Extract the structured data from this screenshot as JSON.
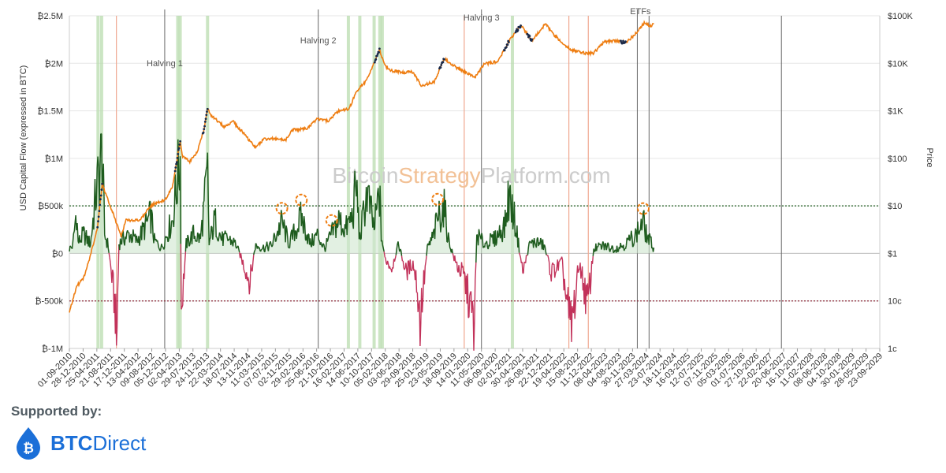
{
  "chart_data": {
    "type": "line",
    "watermark": {
      "part1": "Bitcoin",
      "part2": "Strategy",
      "part3": "Platform.com"
    },
    "ylabel_left": "USD Capital Flow (expressed in BTC)",
    "ylabel_right": "Price",
    "y_left_ticks": [
      "₿2.5M",
      "₿2M",
      "₿1.5M",
      "₿1M",
      "₿500k",
      "₿0",
      "₿-500k",
      "₿-1M"
    ],
    "y_left_values": [
      2500000,
      2000000,
      1500000,
      1000000,
      500000,
      0,
      -500000,
      -1000000
    ],
    "y_right_ticks": [
      "$100K",
      "$10K",
      "$1K",
      "$100",
      "$10",
      "$1",
      "10c",
      "1c"
    ],
    "y_right_values": [
      100000,
      10000,
      1000,
      100,
      10,
      1,
      0.1,
      0.01
    ],
    "ylim_left": [
      -1000000,
      2500000
    ],
    "ylim_right": [
      0.01,
      100000
    ],
    "x_ticks": [
      "01-09-2010",
      "28-12-2010",
      "25-04-2011",
      "21-08-2011",
      "17-12-2011",
      "13-04-2012",
      "09-08-2012",
      "05-12-2012",
      "02-04-2013",
      "29-07-2013",
      "24-11-2013",
      "22-03-2014",
      "18-07-2014",
      "13-11-2014",
      "11-03-2015",
      "07-07-2015",
      "02-11-2015",
      "29-02-2016",
      "25-06-2016",
      "21-10-2016",
      "16-02-2017",
      "14-06-2017",
      "10-10-2017",
      "05-02-2018",
      "03-06-2018",
      "29-09-2018",
      "25-01-2019",
      "23-05-2019",
      "18-09-2019",
      "14-01-2020",
      "11-05-2020",
      "06-09-2020",
      "02-01-2021",
      "30-04-2021",
      "26-08-2021",
      "22-12-2021",
      "19-04-2022",
      "15-08-2022",
      "11-12-2022",
      "08-04-2023",
      "04-08-2023",
      "30-11-2023",
      "27-03-2024",
      "23-07-2024",
      "18-11-2024",
      "16-03-2025",
      "12-07-2025",
      "07-11-2025",
      "05-03-2026",
      "01-07-2026",
      "27-10-2026",
      "22-02-2027",
      "20-06-2027",
      "16-10-2027",
      "11-02-2028",
      "08-06-2028",
      "04-10-2028",
      "30-01-2029",
      "28-05-2029",
      "23-09-2029"
    ],
    "reference_lines": [
      500000,
      -500000
    ],
    "event_lines": [
      {
        "label": "Halving 1",
        "date": "28-11-2012"
      },
      {
        "label": "Halving 2",
        "date": "09-07-2016"
      },
      {
        "label": "Halving 3",
        "date": "11-05-2020"
      },
      {
        "label": "ETFs",
        "date": "10-01-2024"
      }
    ],
    "extra_vertical_dates": [
      "20-04-2024",
      "01-06-2027"
    ],
    "green_bands": [
      "05-05-2011",
      "05-06-2011",
      "20-03-2013",
      "10-04-2013",
      "01-12-2013",
      "25-03-2017",
      "01-07-2017",
      "01-11-2017",
      "20-12-2017",
      "10-01-2018",
      "01-02-2021"
    ],
    "red_lines": [
      "10-10-2011",
      "15-12-2019",
      "01-06-2022",
      "15-11-2022"
    ],
    "highlight_circles_dates": [
      "01-09-2015",
      "15-02-2016",
      "01-11-2016",
      "01-05-2019",
      "01-03-2024"
    ],
    "price_series": {
      "name": "Price",
      "points": [
        [
          "01-09-2010",
          0.06
        ],
        [
          "01-11-2010",
          0.2
        ],
        [
          "01-01-2011",
          0.3
        ],
        [
          "01-03-2011",
          0.9
        ],
        [
          "01-05-2011",
          3.5
        ],
        [
          "10-06-2011",
          29
        ],
        [
          "01-08-2011",
          13
        ],
        [
          "01-10-2011",
          5
        ],
        [
          "20-11-2011",
          2.3
        ],
        [
          "01-01-2012",
          5
        ],
        [
          "01-03-2012",
          5
        ],
        [
          "01-05-2012",
          5
        ],
        [
          "01-08-2012",
          10
        ],
        [
          "01-10-2012",
          12
        ],
        [
          "01-12-2012",
          13
        ],
        [
          "01-02-2013",
          25
        ],
        [
          "10-04-2013",
          230
        ],
        [
          "01-05-2013",
          110
        ],
        [
          "01-07-2013",
          85
        ],
        [
          "01-09-2013",
          130
        ],
        [
          "01-11-2013",
          400
        ],
        [
          "01-12-2013",
          1150
        ],
        [
          "01-01-2014",
          800
        ],
        [
          "01-03-2014",
          600
        ],
        [
          "01-05-2014",
          450
        ],
        [
          "01-07-2014",
          620
        ],
        [
          "01-10-2014",
          350
        ],
        [
          "14-01-2015",
          170
        ],
        [
          "01-04-2015",
          250
        ],
        [
          "01-07-2015",
          260
        ],
        [
          "01-10-2015",
          240
        ],
        [
          "01-12-2015",
          400
        ],
        [
          "01-04-2016",
          420
        ],
        [
          "01-07-2016",
          670
        ],
        [
          "01-10-2016",
          610
        ],
        [
          "01-01-2017",
          1000
        ],
        [
          "01-04-2017",
          1100
        ],
        [
          "01-06-2017",
          2500
        ],
        [
          "01-09-2017",
          4500
        ],
        [
          "17-12-2017",
          19500
        ],
        [
          "01-02-2018",
          9000
        ],
        [
          "01-04-2018",
          7000
        ],
        [
          "01-07-2018",
          6400
        ],
        [
          "01-10-2018",
          6500
        ],
        [
          "15-12-2018",
          3300
        ],
        [
          "01-04-2019",
          4100
        ],
        [
          "26-06-2019",
          12500
        ],
        [
          "01-10-2019",
          8300
        ],
        [
          "15-03-2020",
          5000
        ],
        [
          "01-06-2020",
          9500
        ],
        [
          "01-10-2020",
          11000
        ],
        [
          "01-01-2021",
          29000
        ],
        [
          "14-04-2021",
          63000
        ],
        [
          "20-07-2021",
          30000
        ],
        [
          "10-11-2021",
          67000
        ],
        [
          "01-02-2022",
          38000
        ],
        [
          "18-06-2022",
          19000
        ],
        [
          "09-11-2022",
          16000
        ],
        [
          "01-01-2023",
          16500
        ],
        [
          "01-04-2023",
          28000
        ],
        [
          "01-07-2023",
          30000
        ],
        [
          "01-10-2023",
          27000
        ],
        [
          "01-01-2024",
          43000
        ],
        [
          "14-03-2024",
          72000
        ],
        [
          "01-05-2024",
          60000
        ],
        [
          "01-06-2024",
          68000
        ]
      ]
    },
    "flow_series": {
      "name": "USD Capital Flow (expressed in BTC)",
      "positive_color": "#1e5c1e",
      "negative_color": "#c2325a",
      "points": [
        [
          "01-09-2010",
          50000
        ],
        [
          "01-10-2010",
          80000
        ],
        [
          "01-11-2010",
          470000
        ],
        [
          "15-11-2010",
          110000
        ],
        [
          "01-01-2011",
          200000
        ],
        [
          "01-03-2011",
          100000
        ],
        [
          "15-04-2011",
          600000
        ],
        [
          "10-06-2011",
          1080000
        ],
        [
          "01-07-2011",
          200000
        ],
        [
          "01-08-2011",
          80000
        ],
        [
          "01-09-2011",
          -250000
        ],
        [
          "01-10-2011",
          -600000
        ],
        [
          "10-10-2011",
          -1000000
        ],
        [
          "01-11-2011",
          100000
        ],
        [
          "01-12-2011",
          150000
        ],
        [
          "01-02-2012",
          200000
        ],
        [
          "01-04-2012",
          130000
        ],
        [
          "01-06-2012",
          250000
        ],
        [
          "01-08-2012",
          400000
        ],
        [
          "01-09-2012",
          130000
        ],
        [
          "01-11-2012",
          60000
        ],
        [
          "01-02-2013",
          350000
        ],
        [
          "10-04-2013",
          1000000
        ],
        [
          "20-04-2013",
          -600000
        ],
        [
          "01-06-2013",
          100000
        ],
        [
          "01-08-2013",
          200000
        ],
        [
          "01-10-2013",
          150000
        ],
        [
          "01-12-2013",
          820000
        ],
        [
          "15-12-2013",
          100000
        ],
        [
          "01-02-2014",
          350000
        ],
        [
          "01-04-2014",
          150000
        ],
        [
          "01-06-2014",
          150000
        ],
        [
          "01-08-2014",
          100000
        ],
        [
          "01-10-2014",
          -100000
        ],
        [
          "01-12-2014",
          -300000
        ],
        [
          "14-01-2015",
          80000
        ],
        [
          "01-04-2015",
          60000
        ],
        [
          "01-06-2015",
          80000
        ],
        [
          "01-09-2015",
          330000
        ],
        [
          "01-11-2015",
          100000
        ],
        [
          "15-02-2016",
          380000
        ],
        [
          "01-05-2016",
          100000
        ],
        [
          "01-07-2016",
          200000
        ],
        [
          "01-09-2016",
          50000
        ],
        [
          "01-11-2016",
          200000
        ],
        [
          "01-01-2017",
          350000
        ],
        [
          "01-03-2017",
          250000
        ],
        [
          "01-05-2017",
          400000
        ],
        [
          "01-06-2017",
          720000
        ],
        [
          "01-07-2017",
          150000
        ],
        [
          "01-09-2017",
          650000
        ],
        [
          "01-11-2017",
          250000
        ],
        [
          "17-12-2017",
          650000
        ],
        [
          "01-01-2018",
          200000
        ],
        [
          "01-02-2018",
          -50000
        ],
        [
          "01-04-2018",
          -150000
        ],
        [
          "01-06-2018",
          100000
        ],
        [
          "01-08-2018",
          -200000
        ],
        [
          "01-10-2018",
          -100000
        ],
        [
          "01-11-2018",
          -300000
        ],
        [
          "01-12-2018",
          -700000
        ],
        [
          "01-02-2019",
          50000
        ],
        [
          "01-04-2019",
          200000
        ],
        [
          "01-05-2019",
          380000
        ],
        [
          "26-06-2019",
          480000
        ],
        [
          "01-08-2019",
          150000
        ],
        [
          "01-10-2019",
          -100000
        ],
        [
          "15-12-2019",
          -250000
        ],
        [
          "12-03-2020",
          -780000
        ],
        [
          "01-04-2020",
          200000
        ],
        [
          "01-06-2020",
          100000
        ],
        [
          "01-09-2020",
          150000
        ],
        [
          "01-12-2020",
          300000
        ],
        [
          "01-01-2021",
          620000
        ],
        [
          "01-03-2021",
          300000
        ],
        [
          "01-05-2021",
          -200000
        ],
        [
          "01-07-2021",
          100000
        ],
        [
          "01-09-2021",
          120000
        ],
        [
          "01-11-2021",
          80000
        ],
        [
          "01-01-2022",
          -200000
        ],
        [
          "01-04-2022",
          -100000
        ],
        [
          "18-06-2022",
          -830000
        ],
        [
          "01-09-2022",
          -100000
        ],
        [
          "09-11-2022",
          -560000
        ],
        [
          "01-01-2023",
          50000
        ],
        [
          "01-04-2023",
          80000
        ],
        [
          "01-07-2023",
          50000
        ],
        [
          "01-10-2023",
          100000
        ],
        [
          "01-01-2024",
          200000
        ],
        [
          "01-03-2024",
          330000
        ],
        [
          "01-04-2024",
          180000
        ],
        [
          "01-06-2024",
          60000
        ]
      ]
    }
  },
  "footer": {
    "supported_by": "Supported by:",
    "brand_name_a": "BTC",
    "brand_name_b": "Direct"
  },
  "colors": {
    "price": "#ee7d11",
    "price_peak": "#1a2a4a",
    "flow_positive": "#1e5c1e",
    "flow_negative": "#c2325a",
    "flow_fill": "#cfe6cf",
    "green_band": "#b9dcaf",
    "red_line": "#f0a890",
    "ref_line_pos": "#1e5c1e",
    "ref_line_neg": "#8b2a3a",
    "circle": "#ee7d11",
    "watermark_gray": "#cccccc",
    "watermark_orange": "#f2c196",
    "brand_blue": "#1b6fd8"
  }
}
